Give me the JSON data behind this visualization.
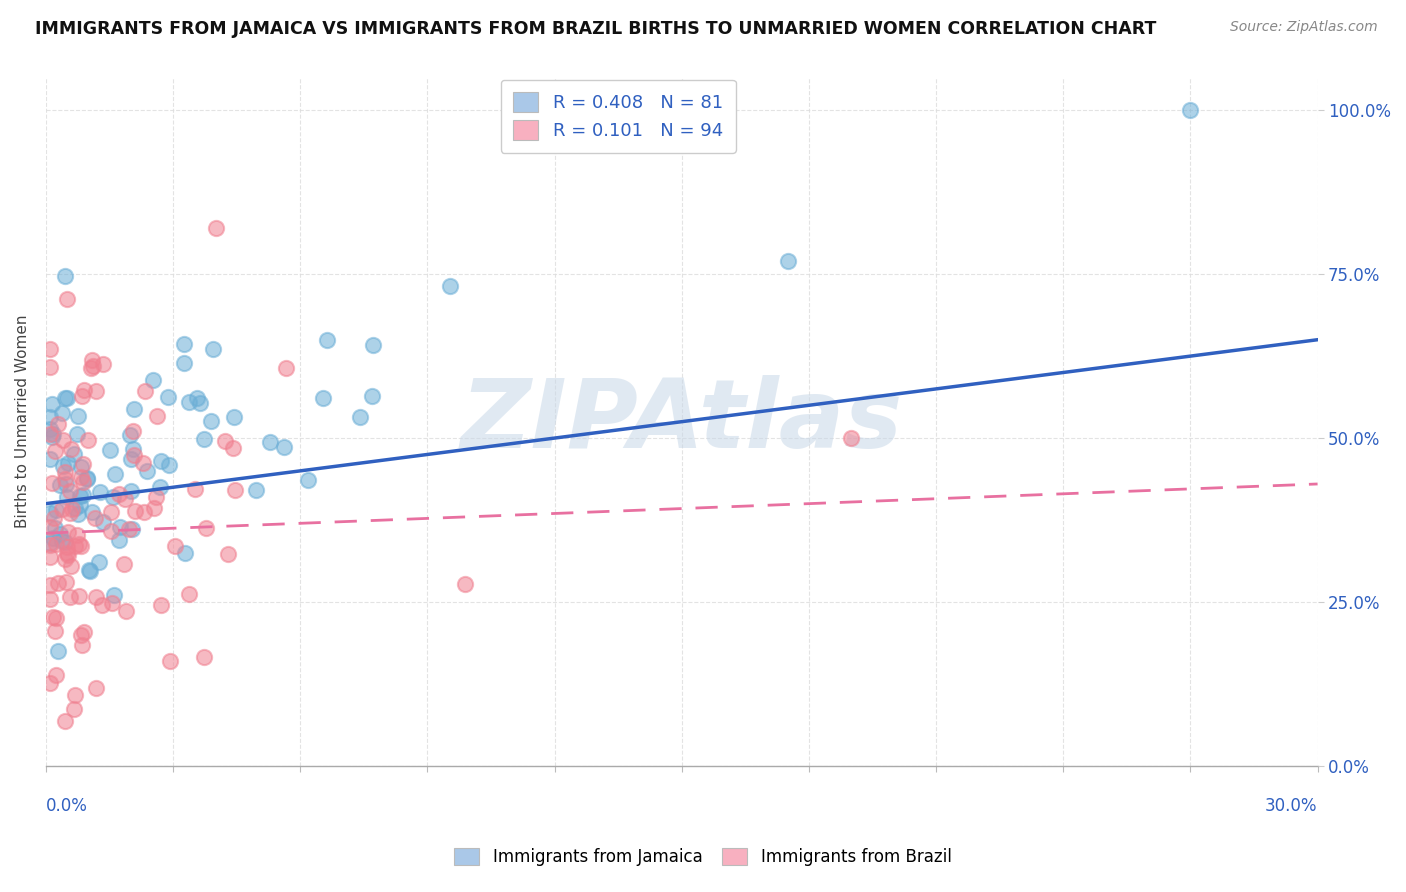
{
  "title": "IMMIGRANTS FROM JAMAICA VS IMMIGRANTS FROM BRAZIL BIRTHS TO UNMARRIED WOMEN CORRELATION CHART",
  "source": "Source: ZipAtlas.com",
  "ylabel": "Births to Unmarried Women",
  "right_yticks": [
    "100.0%",
    "75.0%",
    "50.0%",
    "25.0%",
    "0.0%"
  ],
  "right_ytick_vals": [
    1.0,
    0.75,
    0.5,
    0.25,
    0.0
  ],
  "legend_entries": [
    {
      "label": "Immigrants from Jamaica",
      "R": "0.408",
      "N": "81",
      "color": "#aac8e8"
    },
    {
      "label": "Immigrants from Brazil",
      "R": "0.101",
      "N": "94",
      "color": "#f8b0c0"
    }
  ],
  "jamaica_scatter_color": "#6baed6",
  "brazil_scatter_color": "#f08090",
  "jamaica_line_color": "#3060c0",
  "brazil_line_color": "#e870a0",
  "watermark_color": "#c8d8e8",
  "xmin": 0.0,
  "xmax": 0.3,
  "ymin": 0.0,
  "ymax": 1.05,
  "jamaica_R": 0.408,
  "jamaica_N": 81,
  "brazil_R": 0.101,
  "brazil_N": 94,
  "background_color": "#ffffff",
  "grid_color": "#dddddd"
}
